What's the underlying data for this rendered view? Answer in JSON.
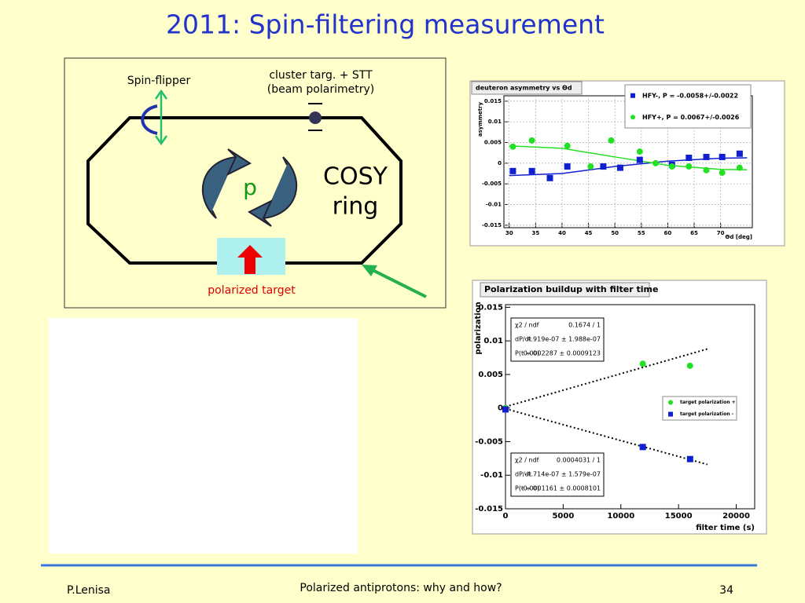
{
  "title": "2011: Spin-filtering measurement",
  "diagram": {
    "spin_flipper": "Spin-flipper",
    "cluster_line1": "cluster targ. + STT",
    "cluster_line2": "(beam polarimetry)",
    "particle": "p",
    "ring_line1": "COSY",
    "ring_line2": "ring",
    "target": "polarized target"
  },
  "footer": {
    "author": "P.Lenisa",
    "talk": "Polarized antiprotons: why and how?",
    "page": "34"
  },
  "chart_data": [
    {
      "type": "scatter",
      "title": "deuteron asymmetry vs Θd",
      "y_label": "asymmetry",
      "x_label": "Θd [deg]",
      "xlim": [
        29,
        76
      ],
      "ylim": [
        -0.0156,
        0.0163
      ],
      "xticks": [
        30,
        35,
        40,
        45,
        50,
        55,
        60,
        65,
        70
      ],
      "yticks": [
        -0.015,
        -0.01,
        -0.005,
        0,
        0.005,
        0.01,
        0.015
      ],
      "grid": true,
      "series": [
        {
          "name": "HFY-, P = -0.0058+/-0.0022",
          "color": "#1020d0",
          "marker": "square",
          "x": [
            30.7,
            34.3,
            37.7,
            41,
            47.8,
            51,
            54.7,
            60.8,
            64,
            67.3,
            70.3,
            73.6
          ],
          "values": [
            -0.0019,
            -0.0019,
            -0.0036,
            -0.0008,
            -0.0008,
            -0.0011,
            0.0008,
            -0.0004,
            0.0013,
            0.0015,
            0.0015,
            0.0023
          ]
        },
        {
          "name": "HFY+, P = 0.0067+/-0.0026",
          "color": "#22e022",
          "marker": "circle",
          "x": [
            30.7,
            34.3,
            41,
            45.4,
            49.3,
            54.7,
            57.7,
            60.8,
            64,
            67.3,
            70.3,
            73.6
          ],
          "values": [
            0.004,
            0.0055,
            0.0042,
            -0.0008,
            0.0055,
            0.0028,
            0,
            -0.0008,
            -0.0008,
            -0.0017,
            -0.0023,
            -0.0011
          ]
        }
      ],
      "fit_lines": [
        {
          "color": "#1020d0",
          "x": [
            30,
            40,
            50,
            60,
            70,
            75
          ],
          "values": [
            -0.003,
            -0.0025,
            -0.0008,
            0.0005,
            0.0012,
            0.0013
          ]
        },
        {
          "color": "#22e022",
          "x": [
            30,
            40,
            50,
            60,
            70,
            75
          ],
          "values": [
            0.0042,
            0.0036,
            0.0015,
            -0.0005,
            -0.0015,
            -0.0016
          ]
        }
      ]
    },
    {
      "type": "scatter",
      "title": "Polarization buildup with filter time",
      "y_label": "polarization",
      "x_label": "filter time (s)",
      "xlim": [
        0,
        21600
      ],
      "ylim": [
        -0.015,
        0.0154
      ],
      "xticks": [
        0,
        5000,
        10000,
        15000,
        20000
      ],
      "yticks": [
        -0.015,
        -0.01,
        -0.005,
        0,
        0.005,
        0.01,
        0.015
      ],
      "grid": false,
      "series": [
        {
          "name": "target polarization +",
          "color": "#22e022",
          "marker": "circle",
          "x": [
            0,
            11900,
            15990
          ],
          "values": [
            0,
            0.0066,
            0.0063
          ]
        },
        {
          "name": "target polarization -",
          "color": "#1020d0",
          "marker": "square",
          "x": [
            0,
            11900,
            16000
          ],
          "values": [
            -0.0002,
            -0.0058,
            -0.0076
          ]
        }
      ],
      "fit_lines": [
        {
          "color": "#000000",
          "x": [
            0,
            17500
          ],
          "values": [
            0.0002,
            0.0088
          ]
        },
        {
          "color": "#000000",
          "x": [
            0,
            17500
          ],
          "values": [
            -0.0001,
            -0.0084
          ]
        }
      ],
      "stats": [
        [
          [
            "χ2 / ndf",
            "0.1674 / 1"
          ],
          [
            "dP/dt",
            "4.919e-07 ± 1.988e-07"
          ],
          [
            "P(t = 0)",
            "0.0002287 ± 0.0009123"
          ]
        ],
        [
          [
            "χ2 / ndf",
            "0.0004031 / 1"
          ],
          [
            "dP/dt",
            "-4.714e-07 ± 1.579e-07"
          ],
          [
            "P(t = 0)",
            "-0.0001161 ± 0.0008101"
          ]
        ]
      ]
    }
  ]
}
